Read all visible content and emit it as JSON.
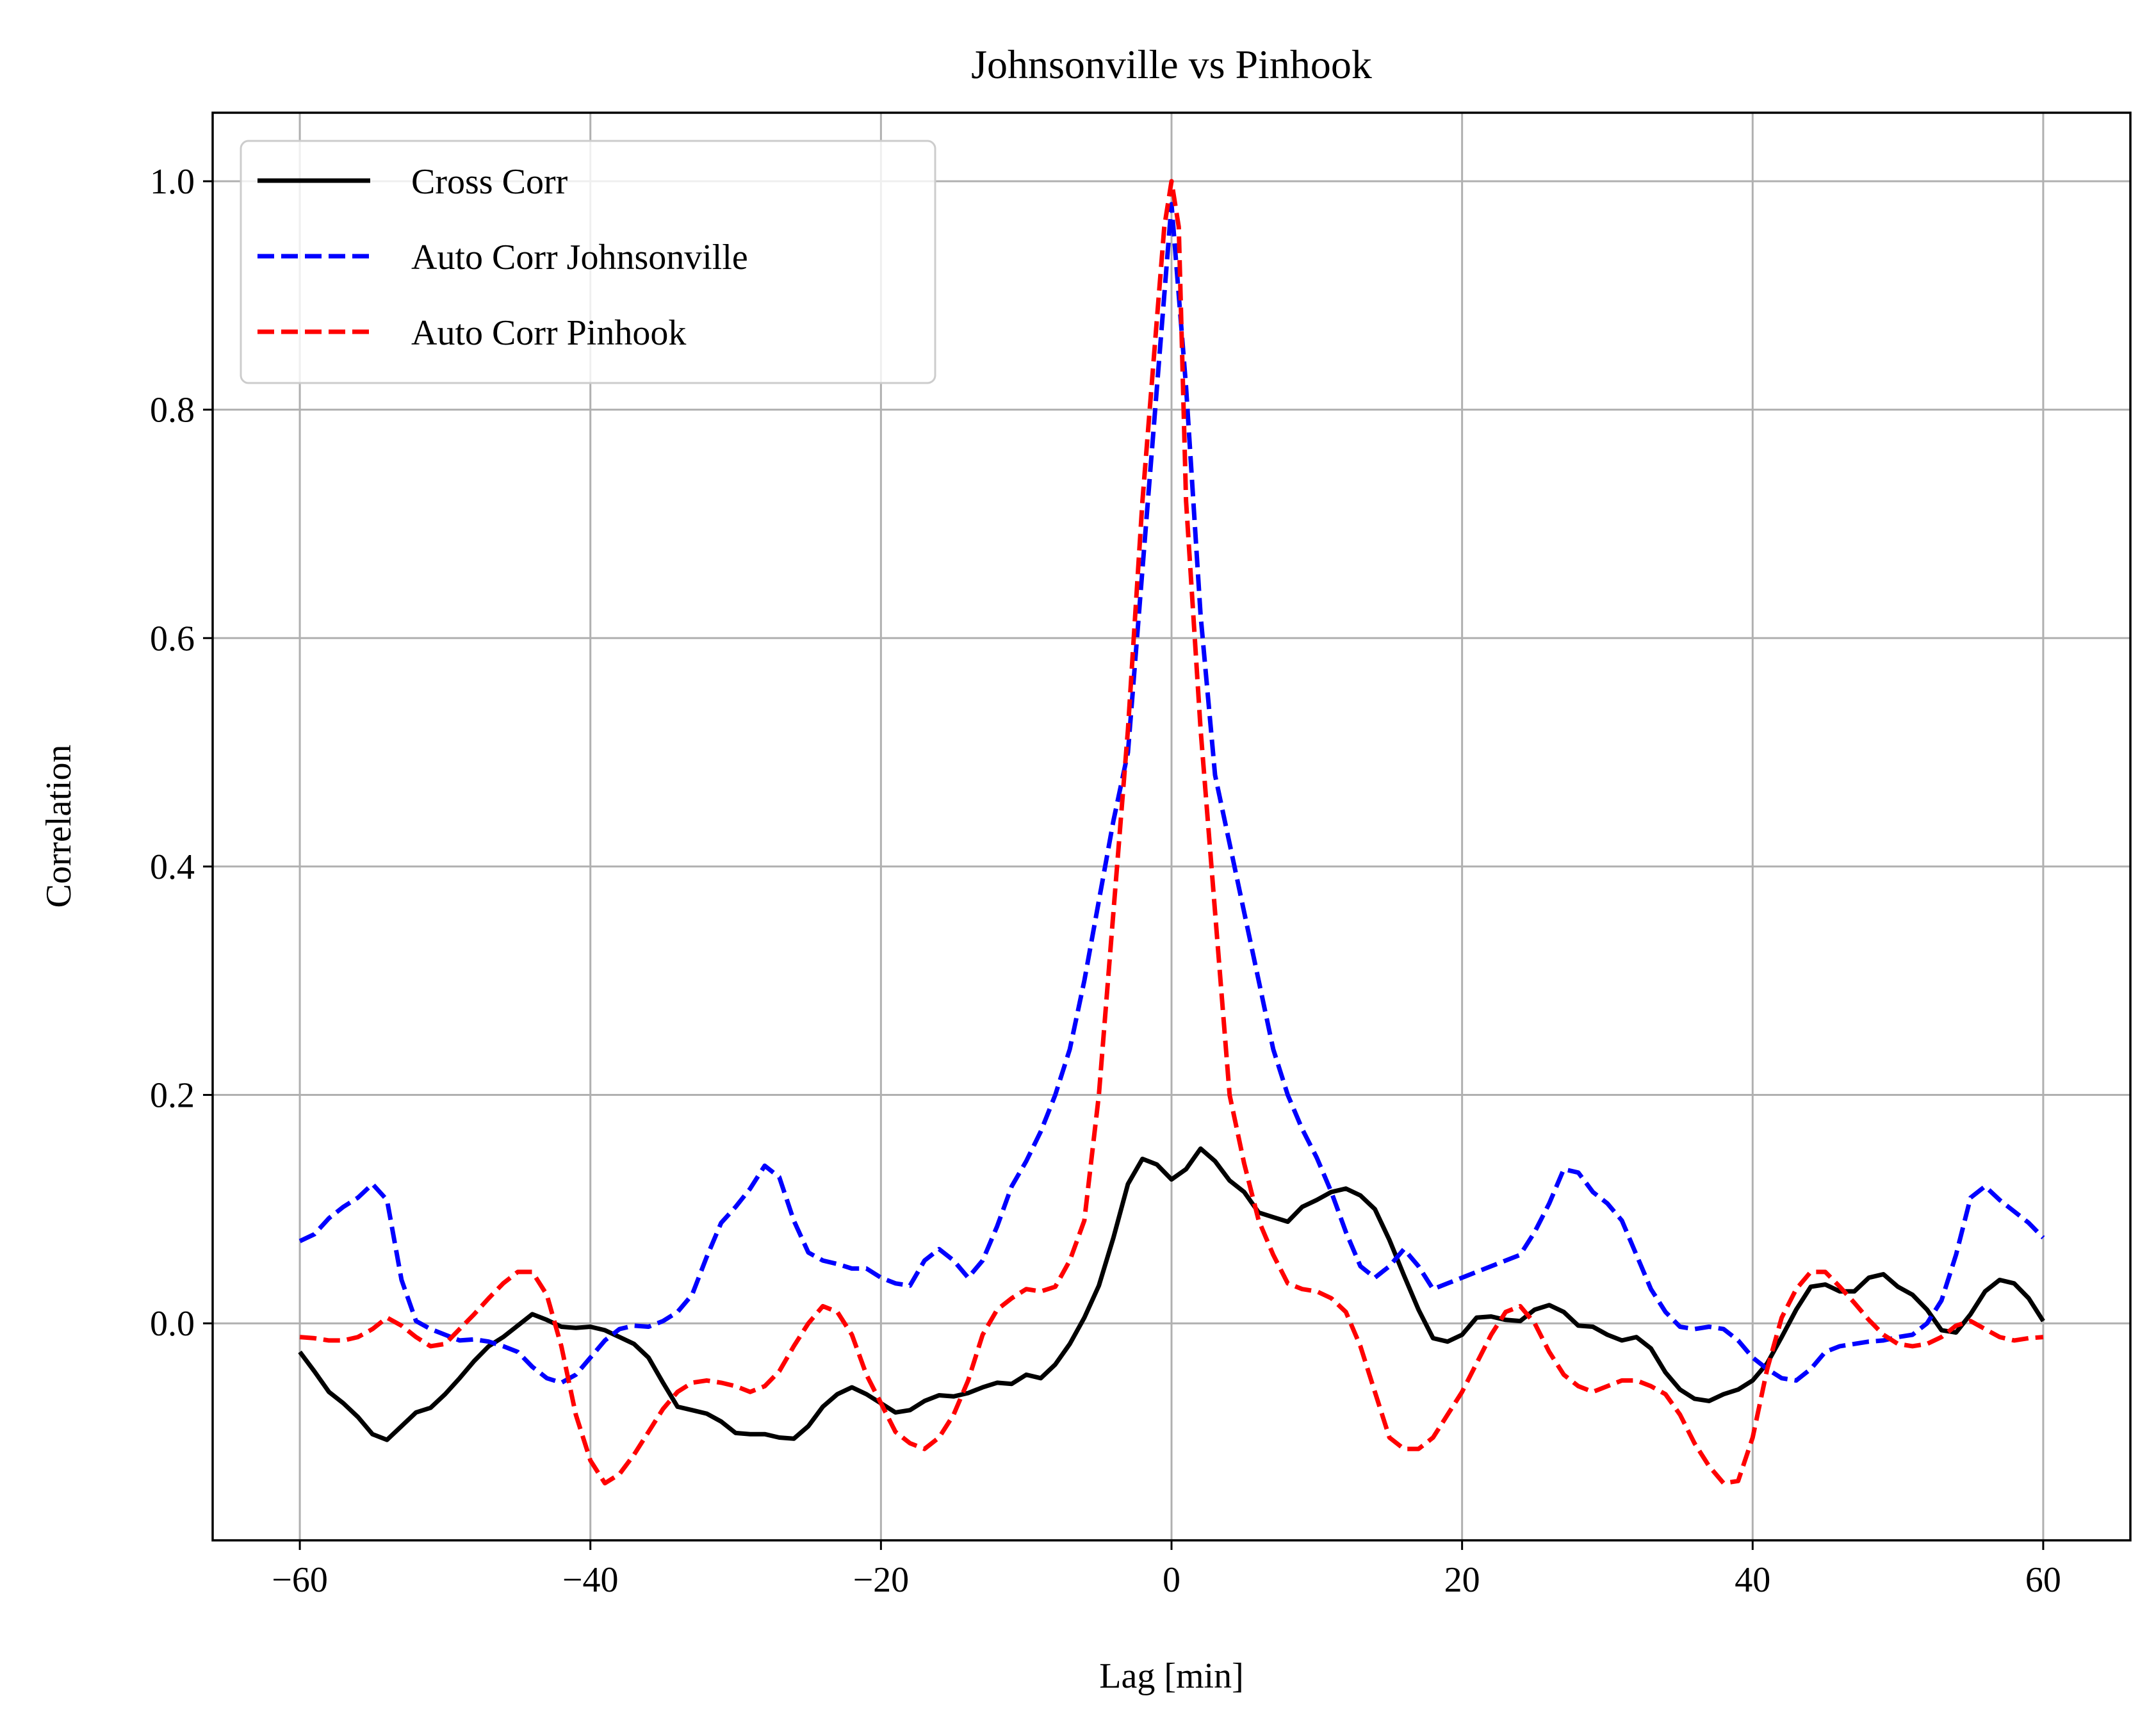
{
  "chart_data": {
    "type": "line",
    "title": "Johnsonville vs Pinhook",
    "xlabel": "Lag [min]",
    "ylabel": "Correlation",
    "xlim": [
      -66,
      66
    ],
    "ylim": [
      -0.19,
      1.06
    ],
    "xticks": [
      -60,
      -40,
      -20,
      0,
      20,
      40,
      60
    ],
    "xtick_labels": [
      "−60",
      "−40",
      "−20",
      "0",
      "20",
      "40",
      "60"
    ],
    "yticks": [
      0.0,
      0.2,
      0.4,
      0.6,
      0.8,
      1.0
    ],
    "ytick_labels": [
      "0.0",
      "0.2",
      "0.4",
      "0.6",
      "0.8",
      "1.0"
    ],
    "grid": true,
    "legend_position": "top-left",
    "series": [
      {
        "name": "Cross Corr",
        "color": "#000000",
        "style": "solid",
        "x": [
          -60,
          -59,
          -58,
          -57,
          -56,
          -55,
          -54,
          -53,
          -52,
          -51,
          -50,
          -49,
          -48,
          -47,
          -46,
          -45,
          -44,
          -43,
          -42,
          -41,
          -40,
          -39,
          -38,
          -37,
          -36,
          -35,
          -34,
          -33,
          -32,
          -31,
          -30,
          -29,
          -28,
          -27,
          -26,
          -25,
          -24,
          -23,
          -22,
          -21,
          -20,
          -19,
          -18,
          -17,
          -16,
          -15,
          -14,
          -13,
          -12,
          -11,
          -10,
          -9,
          -8,
          -7,
          -6,
          -5,
          -4,
          -3,
          -2,
          -1,
          0,
          1,
          2,
          3,
          4,
          5,
          6,
          7,
          8,
          9,
          10,
          11,
          12,
          13,
          14,
          15,
          16,
          17,
          18,
          19,
          20,
          21,
          22,
          23,
          24,
          25,
          26,
          27,
          28,
          29,
          30,
          31,
          32,
          33,
          34,
          35,
          36,
          37,
          38,
          39,
          40,
          41,
          42,
          43,
          44,
          45,
          46,
          47,
          48,
          49,
          50,
          51,
          52,
          53,
          54,
          55,
          56,
          57,
          58,
          59,
          60
        ],
        "y": [
          -0.025,
          -0.042,
          -0.06,
          -0.07,
          -0.082,
          -0.097,
          -0.102,
          -0.09,
          -0.078,
          -0.074,
          -0.062,
          -0.048,
          -0.033,
          -0.02,
          -0.012,
          -0.002,
          0.008,
          0.003,
          -0.003,
          -0.004,
          -0.003,
          -0.006,
          -0.012,
          -0.018,
          -0.03,
          -0.052,
          -0.073,
          -0.076,
          -0.079,
          -0.086,
          -0.096,
          -0.097,
          -0.097,
          -0.1,
          -0.101,
          -0.09,
          -0.073,
          -0.062,
          -0.056,
          -0.062,
          -0.07,
          -0.078,
          -0.076,
          -0.068,
          -0.063,
          -0.064,
          -0.061,
          -0.056,
          -0.052,
          -0.053,
          -0.045,
          -0.048,
          -0.036,
          -0.018,
          0.005,
          0.033,
          0.075,
          0.122,
          0.144,
          0.139,
          0.126,
          0.135,
          0.153,
          0.142,
          0.125,
          0.115,
          0.097,
          0.093,
          0.089,
          0.102,
          0.108,
          0.115,
          0.118,
          0.112,
          0.1,
          0.073,
          0.042,
          0.012,
          -0.013,
          -0.016,
          -0.01,
          0.005,
          0.006,
          0.003,
          0.002,
          0.012,
          0.016,
          0.01,
          -0.002,
          -0.003,
          -0.01,
          -0.015,
          -0.012,
          -0.022,
          -0.043,
          -0.058,
          -0.066,
          -0.068,
          -0.062,
          -0.058,
          -0.05,
          -0.035,
          -0.012,
          0.012,
          0.032,
          0.034,
          0.028,
          0.028,
          0.04,
          0.043,
          0.032,
          0.025,
          0.012,
          -0.006,
          -0.008,
          0.008,
          0.028,
          0.038,
          0.035,
          0.022,
          0.002
        ]
      },
      {
        "name": "Auto Corr Johnsonville",
        "color": "#0000ff",
        "style": "dashed",
        "x": [
          -60,
          -59,
          -58,
          -57,
          -56,
          -55,
          -54,
          -53,
          -52,
          -51,
          -50,
          -49,
          -48,
          -47,
          -46,
          -45,
          -44,
          -43,
          -42,
          -41,
          -40,
          -39,
          -38,
          -37,
          -36,
          -35,
          -34,
          -33,
          -32,
          -31,
          -30,
          -29,
          -28,
          -27,
          -26,
          -25,
          -24,
          -23,
          -22,
          -21,
          -20,
          -19,
          -18,
          -17,
          -16,
          -15,
          -14,
          -13,
          -12,
          -11,
          -10,
          -9,
          -8,
          -7,
          -6,
          -5,
          -4,
          -3,
          -2,
          -1,
          0,
          1,
          2,
          3,
          4,
          5,
          6,
          7,
          8,
          9,
          10,
          11,
          12,
          13,
          14,
          15,
          16,
          17,
          18,
          19,
          20,
          21,
          22,
          23,
          24,
          25,
          26,
          27,
          28,
          29,
          30,
          31,
          32,
          33,
          34,
          35,
          36,
          37,
          38,
          39,
          40,
          41,
          42,
          43,
          44,
          45,
          46,
          47,
          48,
          49,
          50,
          51,
          52,
          53,
          54,
          55,
          56,
          57,
          58,
          59,
          60
        ],
        "y": [
          0.072,
          0.078,
          0.092,
          0.102,
          0.11,
          0.122,
          0.108,
          0.038,
          0.002,
          -0.005,
          -0.01,
          -0.015,
          -0.014,
          -0.016,
          -0.02,
          -0.025,
          -0.038,
          -0.048,
          -0.052,
          -0.045,
          -0.03,
          -0.015,
          -0.005,
          -0.002,
          -0.003,
          0.002,
          0.01,
          0.025,
          0.058,
          0.088,
          0.102,
          0.118,
          0.138,
          0.128,
          0.09,
          0.062,
          0.055,
          0.052,
          0.048,
          0.048,
          0.04,
          0.035,
          0.033,
          0.055,
          0.065,
          0.055,
          0.04,
          0.055,
          0.085,
          0.12,
          0.142,
          0.168,
          0.2,
          0.24,
          0.3,
          0.37,
          0.44,
          0.5,
          0.66,
          0.82,
          0.98,
          0.82,
          0.62,
          0.48,
          0.42,
          0.36,
          0.3,
          0.24,
          0.2,
          0.17,
          0.145,
          0.115,
          0.08,
          0.05,
          0.04,
          0.05,
          0.065,
          0.05,
          0.03,
          0.035,
          0.04,
          0.045,
          0.05,
          0.055,
          0.06,
          0.08,
          0.105,
          0.135,
          0.132,
          0.115,
          0.105,
          0.09,
          0.06,
          0.03,
          0.01,
          -0.003,
          -0.005,
          -0.003,
          -0.005,
          -0.015,
          -0.03,
          -0.04,
          -0.048,
          -0.05,
          -0.04,
          -0.025,
          -0.02,
          -0.018,
          -0.016,
          -0.015,
          -0.012,
          -0.01,
          0.0,
          0.02,
          0.06,
          0.11,
          0.12,
          0.108,
          0.098,
          0.088,
          0.075
        ]
      },
      {
        "name": "Auto Corr Pinhook",
        "color": "#ff0000",
        "style": "dashed",
        "x": [
          -60,
          -59,
          -58,
          -57,
          -56,
          -55,
          -54,
          -53,
          -52,
          -51,
          -50,
          -49,
          -48,
          -47,
          -46,
          -45,
          -44,
          -43,
          -42,
          -41,
          -40,
          -39,
          -38,
          -37,
          -36,
          -35,
          -34,
          -33,
          -32,
          -31,
          -30,
          -29,
          -28,
          -27,
          -26,
          -25,
          -24,
          -23,
          -22,
          -21,
          -20,
          -19,
          -18,
          -17,
          -16,
          -15,
          -14,
          -13,
          -12,
          -11,
          -10,
          -9,
          -8,
          -7,
          -6,
          -5,
          -4,
          -3,
          -2,
          -1,
          -0.5,
          0,
          0.5,
          1,
          2,
          3,
          4,
          5,
          6,
          7,
          8,
          9,
          10,
          11,
          12,
          13,
          14,
          15,
          16,
          17,
          18,
          19,
          20,
          21,
          22,
          23,
          24,
          25,
          26,
          27,
          28,
          29,
          30,
          31,
          32,
          33,
          34,
          35,
          36,
          37,
          38,
          39,
          40,
          41,
          42,
          43,
          44,
          45,
          46,
          47,
          48,
          49,
          50,
          51,
          52,
          53,
          54,
          55,
          56,
          57,
          58,
          59,
          60
        ],
        "y": [
          -0.012,
          -0.013,
          -0.015,
          -0.015,
          -0.012,
          -0.005,
          0.005,
          -0.002,
          -0.012,
          -0.02,
          -0.018,
          -0.005,
          0.008,
          0.022,
          0.035,
          0.045,
          0.045,
          0.025,
          -0.02,
          -0.08,
          -0.12,
          -0.14,
          -0.132,
          -0.115,
          -0.095,
          -0.075,
          -0.06,
          -0.052,
          -0.05,
          -0.052,
          -0.055,
          -0.06,
          -0.055,
          -0.042,
          -0.02,
          0.0,
          0.015,
          0.01,
          -0.01,
          -0.045,
          -0.07,
          -0.095,
          -0.105,
          -0.11,
          -0.1,
          -0.08,
          -0.05,
          -0.01,
          0.012,
          0.022,
          0.03,
          0.028,
          0.032,
          0.055,
          0.09,
          0.2,
          0.36,
          0.52,
          0.72,
          0.88,
          0.96,
          1.0,
          0.96,
          0.72,
          0.52,
          0.36,
          0.2,
          0.14,
          0.09,
          0.06,
          0.035,
          0.03,
          0.028,
          0.022,
          0.01,
          -0.02,
          -0.06,
          -0.1,
          -0.11,
          -0.11,
          -0.1,
          -0.08,
          -0.06,
          -0.035,
          -0.01,
          0.01,
          0.015,
          0.0,
          -0.025,
          -0.045,
          -0.055,
          -0.06,
          -0.055,
          -0.05,
          -0.05,
          -0.055,
          -0.062,
          -0.08,
          -0.105,
          -0.125,
          -0.14,
          -0.138,
          -0.1,
          -0.04,
          0.005,
          0.03,
          0.045,
          0.045,
          0.032,
          0.018,
          0.003,
          -0.01,
          -0.018,
          -0.02,
          -0.018,
          -0.012,
          -0.002,
          0.002,
          -0.005,
          -0.012,
          -0.015,
          -0.013,
          -0.012
        ]
      }
    ]
  }
}
